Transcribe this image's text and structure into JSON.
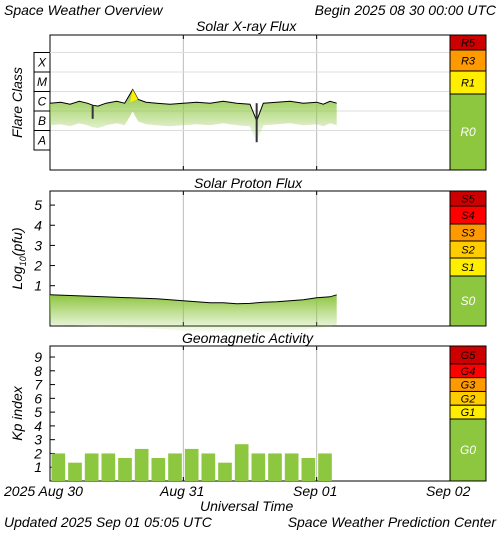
{
  "header": {
    "title": "Space Weather Overview",
    "begin_label": "Begin",
    "begin_time": "2025 08 30 00:00 UTC"
  },
  "footer": {
    "updated_label": "Updated",
    "updated_time": "2025 Sep 01 05:05 UTC",
    "credit": "Space Weather Prediction Center"
  },
  "x_axis": {
    "label": "Universal Time",
    "ticks": [
      "2025 Aug 30",
      "Aug 31",
      "Sep 01",
      "Sep 02"
    ]
  },
  "colors": {
    "data_green": "#8dc63f",
    "scale_red_dark": "#cc0000",
    "scale_red": "#ff0000",
    "scale_orange": "#ff9900",
    "scale_yellow": "#ffcc00",
    "scale_lightyellow": "#ffee00",
    "scale_green": "#8dc63f"
  },
  "chart_data": [
    {
      "type": "line",
      "title": "Solar X-ray Flux",
      "ylabel": "Flare Class",
      "y_ticks": [
        "X",
        "M",
        "C",
        "B",
        "A"
      ],
      "x_range_days": [
        0,
        3
      ],
      "scale": [
        {
          "label": "R5",
          "color": "#cc0000"
        },
        {
          "label": "R3",
          "color": "#ff9900"
        },
        {
          "label": "R1",
          "color": "#ffee00"
        },
        {
          "label": "R0",
          "color": "#8dc63f"
        }
      ],
      "series": [
        {
          "x": [
            0.0,
            0.08,
            0.15,
            0.22,
            0.28,
            0.32,
            0.36,
            0.42,
            0.5,
            0.56,
            0.62,
            0.66,
            0.72,
            0.8,
            0.9,
            1.0,
            1.1,
            1.2,
            1.3,
            1.4,
            1.5,
            1.55,
            1.6,
            1.7,
            1.8,
            1.9,
            2.0,
            2.05,
            2.1,
            2.15
          ],
          "flare_class": [
            1.9,
            1.95,
            1.85,
            2.0,
            1.9,
            1.8,
            1.75,
            1.9,
            2.0,
            1.9,
            2.6,
            2.1,
            1.95,
            1.9,
            1.85,
            1.9,
            1.95,
            1.9,
            2.0,
            1.9,
            1.85,
            1.0,
            1.9,
            1.95,
            2.0,
            1.9,
            1.95,
            1.85,
            2.0,
            1.9
          ]
        }
      ]
    },
    {
      "type": "line",
      "title": "Solar Proton Flux",
      "ylabel": "Log₁₀(pfu)",
      "ylabel_base": "Log",
      "ylabel_sub": "10",
      "ylabel_unit": "(pfu)",
      "y_ticks": [
        "5",
        "4",
        "3",
        "2",
        "1"
      ],
      "ylim": [
        -1,
        5.7
      ],
      "scale": [
        {
          "label": "S5",
          "color": "#cc0000"
        },
        {
          "label": "S4",
          "color": "#ff0000"
        },
        {
          "label": "S3",
          "color": "#ff9900"
        },
        {
          "label": "S2",
          "color": "#ffcc00"
        },
        {
          "label": "S1",
          "color": "#ffee00"
        },
        {
          "label": "S0",
          "color": "#8dc63f"
        }
      ],
      "series": [
        {
          "x": [
            0.0,
            0.2,
            0.4,
            0.6,
            0.8,
            1.0,
            1.1,
            1.2,
            1.3,
            1.4,
            1.5,
            1.6,
            1.7,
            1.8,
            1.9,
            2.0,
            2.1,
            2.15
          ],
          "log_pfu": [
            0.55,
            0.5,
            0.45,
            0.4,
            0.35,
            0.25,
            0.2,
            0.15,
            0.15,
            0.1,
            0.12,
            0.18,
            0.2,
            0.25,
            0.3,
            0.4,
            0.45,
            0.55
          ]
        }
      ]
    },
    {
      "type": "bar",
      "title": "Geomagnetic Activity",
      "ylabel": "Kp index",
      "y_ticks": [
        "9",
        "8",
        "7",
        "6",
        "5",
        "4",
        "3",
        "2",
        "1"
      ],
      "ylim": [
        0,
        9.8
      ],
      "scale": [
        {
          "label": "G5",
          "color": "#cc0000"
        },
        {
          "label": "G4",
          "color": "#ff0000"
        },
        {
          "label": "G3",
          "color": "#ff9900"
        },
        {
          "label": "G2",
          "color": "#ffcc00"
        },
        {
          "label": "G1",
          "color": "#ffee00"
        },
        {
          "label": "G0",
          "color": "#8dc63f"
        }
      ],
      "values": [
        2.0,
        1.33,
        2.0,
        2.0,
        1.67,
        2.33,
        1.67,
        2.0,
        2.33,
        2.0,
        1.33,
        2.67,
        2.0,
        2.0,
        2.0,
        1.67,
        2.0
      ]
    }
  ]
}
